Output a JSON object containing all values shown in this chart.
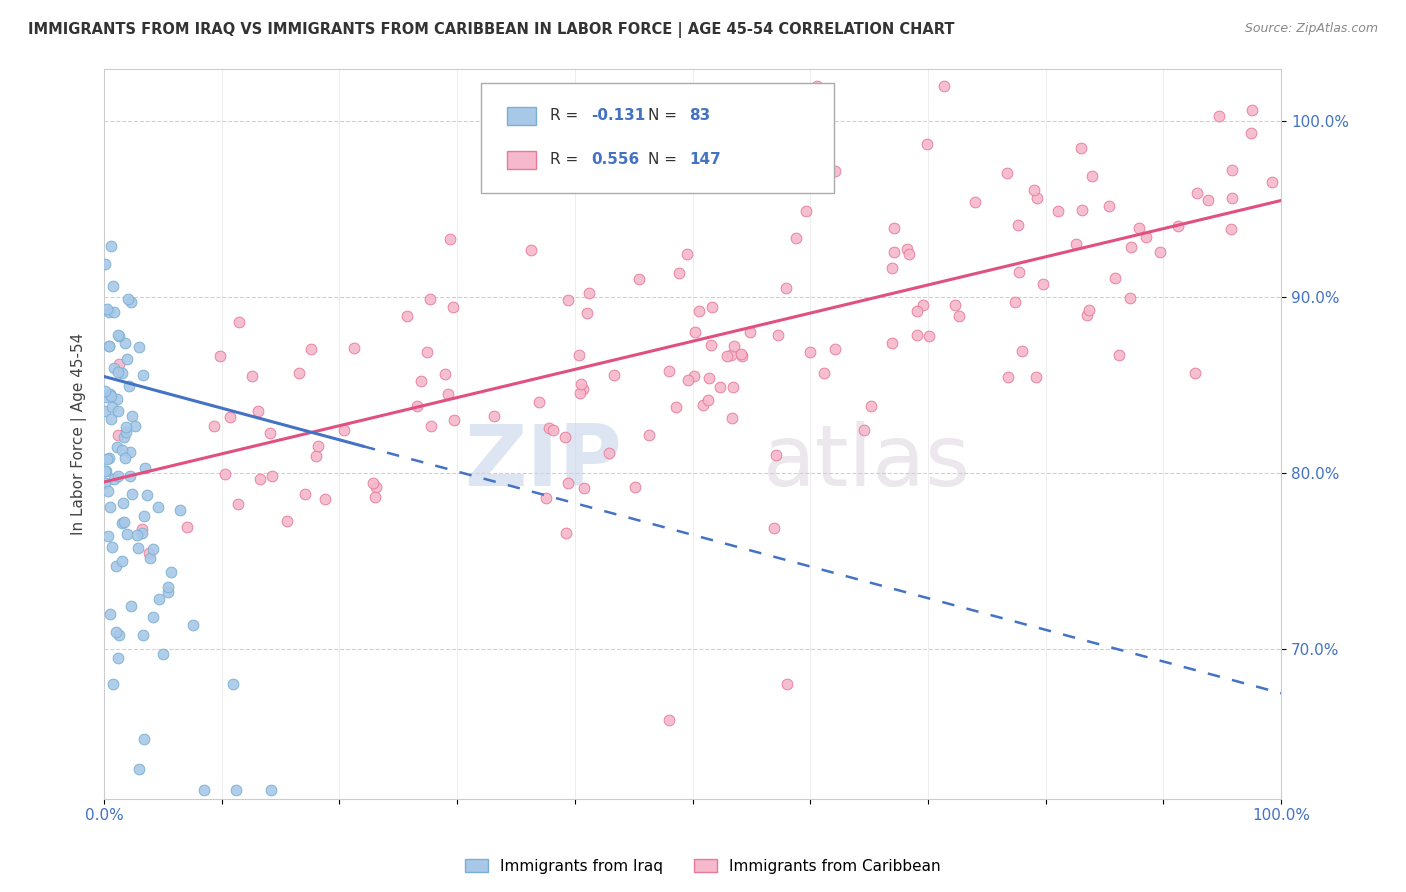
{
  "title": "IMMIGRANTS FROM IRAQ VS IMMIGRANTS FROM CARIBBEAN IN LABOR FORCE | AGE 45-54 CORRELATION CHART",
  "source": "Source: ZipAtlas.com",
  "ylabel": "In Labor Force | Age 45-54",
  "iraq_color": "#a8c8e8",
  "caribbean_color": "#f5b8cc",
  "iraq_edge": "#7aafd4",
  "caribbean_edge": "#e87a96",
  "trendline_iraq_color": "#4472c4",
  "trendline_caribbean_color": "#e05080",
  "legend_R_iraq": "-0.131",
  "legend_N_iraq": "83",
  "legend_R_caribbean": "0.556",
  "legend_N_caribbean": "147",
  "iraq_R": -0.131,
  "iraq_N": 83,
  "caribbean_R": 0.556,
  "caribbean_N": 147,
  "xlim": [
    0.0,
    1.0
  ],
  "ylim": [
    0.615,
    1.03
  ],
  "ytick_values": [
    0.7,
    0.8,
    0.9,
    1.0
  ],
  "ytick_labels": [
    "70.0%",
    "80.0%",
    "90.0%",
    "100.0%"
  ],
  "watermark_zip": "ZIP",
  "watermark_atlas": "atlas",
  "iraq_trendline_x0": 0.0,
  "iraq_trendline_y0": 0.855,
  "iraq_trendline_x1": 1.0,
  "iraq_trendline_y1": 0.675,
  "carib_trendline_x0": 0.0,
  "carib_trendline_y0": 0.795,
  "carib_trendline_x1": 1.0,
  "carib_trendline_y1": 0.955
}
